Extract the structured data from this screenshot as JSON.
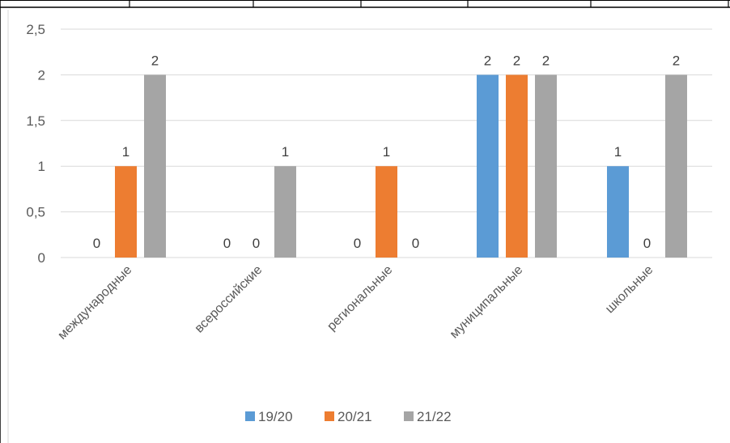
{
  "chart_data": {
    "type": "bar",
    "categories": [
      "международные",
      "всероссийские",
      "региональные",
      "муниципальные",
      "школьные"
    ],
    "series": [
      {
        "name": "19/20",
        "color": "#5B9BD5",
        "values": [
          0,
          0,
          0,
          2,
          1
        ],
        "labels": [
          "0",
          "0",
          "0",
          "2",
          "1"
        ]
      },
      {
        "name": "20/21",
        "color": "#ED7D31",
        "values": [
          1,
          0,
          1,
          2,
          0
        ],
        "labels": [
          "1",
          "0",
          "1",
          "2",
          "0"
        ]
      },
      {
        "name": "21/22",
        "color": "#A5A5A5",
        "values": [
          2,
          1,
          0,
          2,
          2
        ],
        "labels": [
          "2",
          "1",
          "0",
          "2",
          "2"
        ]
      }
    ],
    "y_ticks": [
      {
        "value": 0,
        "label": "0"
      },
      {
        "value": 0.5,
        "label": "0,5"
      },
      {
        "value": 1,
        "label": "1"
      },
      {
        "value": 1.5,
        "label": "1,5"
      },
      {
        "value": 2,
        "label": "2"
      },
      {
        "value": 2.5,
        "label": "2,5"
      }
    ],
    "ylim": [
      0,
      2.5
    ],
    "grid": true,
    "legend_position": "bottom"
  }
}
